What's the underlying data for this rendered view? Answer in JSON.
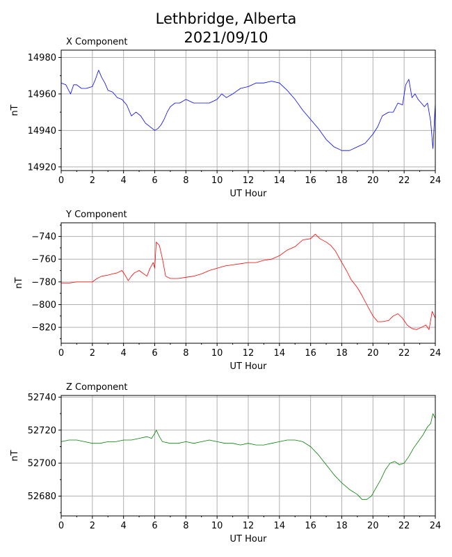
{
  "title_line1": "Lethbridge, Alberta",
  "title_line2": "2021/09/10",
  "chart_data": [
    {
      "type": "line",
      "title": "X Component",
      "xlabel": "UT Hour",
      "ylabel": "nT",
      "xlim": [
        0,
        24
      ],
      "ylim": [
        14918,
        14984
      ],
      "xticks": [
        0,
        2,
        4,
        6,
        8,
        10,
        12,
        14,
        16,
        18,
        20,
        22,
        24
      ],
      "yticks": [
        14920,
        14940,
        14960,
        14980
      ],
      "grid": true,
      "color": "#0000ff",
      "series": [
        {
          "x": [
            0,
            0.3,
            0.6,
            0.8,
            1.0,
            1.3,
            1.6,
            2.0,
            2.2,
            2.4,
            2.6,
            2.8,
            3.0,
            3.3,
            3.6,
            3.9,
            4.2,
            4.5,
            4.8,
            5.1,
            5.4,
            5.7,
            6.0,
            6.2,
            6.4,
            6.6,
            6.8,
            7.0,
            7.3,
            7.6,
            8.0,
            8.5,
            9.0,
            9.5,
            10.0,
            10.3,
            10.6,
            11.0,
            11.5,
            12.0,
            12.5,
            13.0,
            13.5,
            14.0,
            14.5,
            15.0,
            15.5,
            16.0,
            16.5,
            17.0,
            17.5,
            18.0,
            18.5,
            19.0,
            19.5,
            20.0,
            20.3,
            20.6,
            21.0,
            21.3,
            21.6,
            21.9,
            22.1,
            22.3,
            22.5,
            22.7,
            22.9,
            23.1,
            23.3,
            23.5,
            23.7,
            23.85,
            24.0
          ],
          "y": [
            14966,
            14965,
            14960,
            14965,
            14965,
            14963,
            14963,
            14964,
            14968,
            14973,
            14969,
            14966,
            14962,
            14961,
            14958,
            14957,
            14954,
            14948,
            14950,
            14948,
            14944,
            14942,
            14940,
            14941,
            14943,
            14946,
            14950,
            14953,
            14955,
            14955,
            14957,
            14955,
            14955,
            14955,
            14957,
            14960,
            14958,
            14960,
            14963,
            14964,
            14966,
            14966,
            14967,
            14966,
            14962,
            14957,
            14951,
            14946,
            14941,
            14935,
            14931,
            14929,
            14929,
            14931,
            14933,
            14938,
            14942,
            14948,
            14950,
            14950,
            14955,
            14954,
            14965,
            14968,
            14958,
            14960,
            14957,
            14955,
            14953,
            14955,
            14945,
            14930,
            14955
          ]
        }
      ]
    },
    {
      "type": "line",
      "title": "Y Component",
      "xlabel": "UT Hour",
      "ylabel": "nT",
      "xlim": [
        0,
        24
      ],
      "ylim": [
        -834,
        -728
      ],
      "xticks": [
        0,
        2,
        4,
        6,
        8,
        10,
        12,
        14,
        16,
        18,
        20,
        22,
        24
      ],
      "yticks": [
        -820,
        -800,
        -780,
        -760,
        -740
      ],
      "grid": true,
      "color": "#ff0000",
      "series": [
        {
          "x": [
            0,
            0.5,
            1.0,
            1.5,
            2.0,
            2.3,
            2.6,
            3.0,
            3.3,
            3.6,
            3.9,
            4.1,
            4.3,
            4.5,
            4.7,
            5.0,
            5.3,
            5.5,
            5.7,
            5.9,
            6.0,
            6.1,
            6.3,
            6.5,
            6.7,
            7.0,
            7.5,
            8.0,
            8.5,
            9.0,
            9.5,
            10.0,
            10.5,
            11.0,
            11.5,
            12.0,
            12.5,
            13.0,
            13.5,
            14.0,
            14.5,
            15.0,
            15.5,
            16.0,
            16.3,
            16.6,
            17.0,
            17.3,
            17.6,
            18.0,
            18.3,
            18.6,
            19.0,
            19.3,
            19.6,
            20.0,
            20.3,
            20.6,
            21.0,
            21.3,
            21.6,
            21.9,
            22.2,
            22.5,
            22.8,
            23.1,
            23.4,
            23.6,
            23.8,
            24.0
          ],
          "y": [
            -781,
            -781,
            -780,
            -780,
            -780,
            -777,
            -775,
            -774,
            -773,
            -772,
            -770,
            -774,
            -779,
            -775,
            -772,
            -770,
            -773,
            -775,
            -768,
            -763,
            -768,
            -745,
            -748,
            -760,
            -775,
            -777,
            -777,
            -776,
            -775,
            -773,
            -770,
            -768,
            -766,
            -765,
            -764,
            -763,
            -763,
            -761,
            -760,
            -757,
            -752,
            -749,
            -743,
            -742,
            -738,
            -742,
            -745,
            -748,
            -753,
            -763,
            -770,
            -778,
            -785,
            -792,
            -800,
            -810,
            -815,
            -815,
            -814,
            -810,
            -808,
            -812,
            -818,
            -821,
            -822,
            -820,
            -818,
            -822,
            -806,
            -812
          ]
        }
      ]
    },
    {
      "type": "line",
      "title": "Z Component",
      "xlabel": "UT Hour",
      "ylabel": "nT",
      "xlim": [
        0,
        24
      ],
      "ylim": [
        52668,
        52741
      ],
      "xticks": [
        0,
        2,
        4,
        6,
        8,
        10,
        12,
        14,
        16,
        18,
        20,
        22,
        24
      ],
      "yticks": [
        52680,
        52700,
        52720,
        52740
      ],
      "grid": true,
      "color": "#008000",
      "series": [
        {
          "x": [
            0,
            0.5,
            1.0,
            1.5,
            2.0,
            2.5,
            3.0,
            3.5,
            4.0,
            4.5,
            5.0,
            5.5,
            5.8,
            6.0,
            6.1,
            6.3,
            6.5,
            7.0,
            7.5,
            8.0,
            8.5,
            9.0,
            9.5,
            10.0,
            10.5,
            11.0,
            11.5,
            12.0,
            12.5,
            13.0,
            13.5,
            14.0,
            14.5,
            15.0,
            15.5,
            16.0,
            16.5,
            17.0,
            17.5,
            18.0,
            18.5,
            19.0,
            19.3,
            19.6,
            19.9,
            20.2,
            20.5,
            20.8,
            21.1,
            21.4,
            21.7,
            22.0,
            22.3,
            22.6,
            22.9,
            23.2,
            23.5,
            23.7,
            23.85,
            24.0
          ],
          "y": [
            52713,
            52714,
            52714,
            52713,
            52712,
            52712,
            52713,
            52713,
            52714,
            52714,
            52715,
            52716,
            52715,
            52718,
            52720,
            52716,
            52713,
            52712,
            52712,
            52713,
            52712,
            52713,
            52714,
            52713,
            52712,
            52712,
            52711,
            52712,
            52711,
            52711,
            52712,
            52713,
            52714,
            52714,
            52713,
            52710,
            52705,
            52699,
            52693,
            52688,
            52684,
            52681,
            52678,
            52678,
            52680,
            52685,
            52690,
            52696,
            52700,
            52701,
            52699,
            52700,
            52704,
            52709,
            52713,
            52717,
            52722,
            52724,
            52730,
            52727
          ]
        }
      ]
    }
  ]
}
